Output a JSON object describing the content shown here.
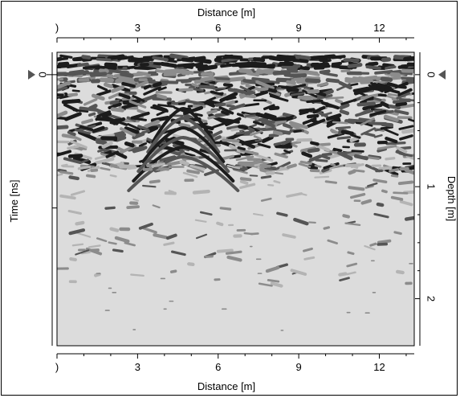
{
  "chart_data": {
    "type": "heatmap",
    "title": "",
    "xlabel_top": "Distance [m]",
    "xlabel_bottom": "Distance [m]",
    "ylabel_left": "Time [ns]",
    "ylabel_right": "Depth [m]",
    "x_ticks": [
      {
        "value": 0,
        "label": ")"
      },
      {
        "value": 3,
        "label": "3"
      },
      {
        "value": 6,
        "label": "6"
      },
      {
        "value": 9,
        "label": "9"
      },
      {
        "value": 12,
        "label": "12"
      }
    ],
    "xlim": [
      0,
      13.3
    ],
    "depth_ticks": [
      {
        "value": 0,
        "label": "0"
      },
      {
        "value": 1,
        "label": "1"
      },
      {
        "value": 2,
        "label": "2"
      }
    ],
    "depth_lim": [
      -0.2,
      2.42
    ],
    "time_zero_label": "0",
    "background_color": "#dcdcdc",
    "reflection_colors": [
      "#1c1c1c",
      "#555555",
      "#8c8c8c",
      "#b4b4b4"
    ]
  }
}
